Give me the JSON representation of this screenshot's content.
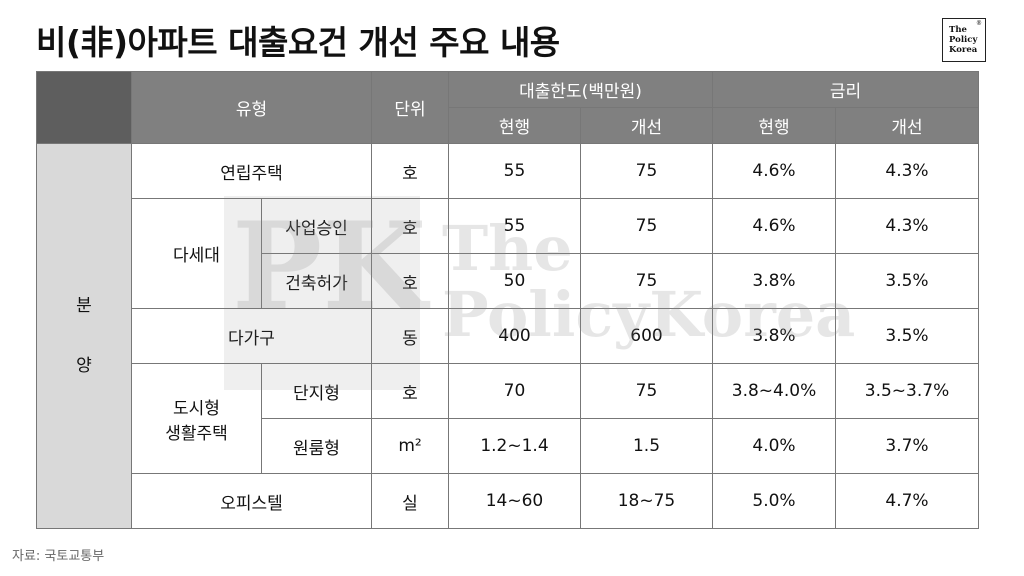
{
  "title": "비(非)아파트 대출요건 개선 주요 내용",
  "logo": {
    "line1": "The",
    "line2": "Policy",
    "line3": "Korea",
    "mark": "®"
  },
  "watermark": {
    "letters": "PK",
    "line1": "The",
    "line2": "PolicyKorea"
  },
  "header": {
    "type": "유형",
    "unit": "단위",
    "limit": "대출한도(백만원)",
    "rate": "금리",
    "current": "현행",
    "improved": "개선"
  },
  "side_label": {
    "char1": "분",
    "char2": "양"
  },
  "rows": {
    "yeonrip": {
      "type": "연립주택",
      "unit": "호",
      "limit_cur": "55",
      "limit_new": "75",
      "rate_cur": "4.6%",
      "rate_new": "4.3%"
    },
    "dasedae": {
      "type": "다세대"
    },
    "dasedae_a": {
      "sub": "사업승인",
      "unit": "호",
      "limit_cur": "55",
      "limit_new": "75",
      "rate_cur": "4.6%",
      "rate_new": "4.3%"
    },
    "dasedae_b": {
      "sub": "건축허가",
      "unit": "호",
      "limit_cur": "50",
      "limit_new": "75",
      "rate_cur": "3.8%",
      "rate_new": "3.5%"
    },
    "dagagu": {
      "type": "다가구",
      "unit": "동",
      "limit_cur": "400",
      "limit_new": "600",
      "rate_cur": "3.8%",
      "rate_new": "3.5%"
    },
    "dosi": {
      "type_line1": "도시형",
      "type_line2": "생활주택"
    },
    "dosi_a": {
      "sub": "단지형",
      "unit": "호",
      "limit_cur": "70",
      "limit_new": "75",
      "rate_cur": "3.8~4.0%",
      "rate_new": "3.5~3.7%"
    },
    "dosi_b": {
      "sub": "원룸형",
      "unit": "m²",
      "limit_cur": "1.2~1.4",
      "limit_new": "1.5",
      "rate_cur": "4.0%",
      "rate_new": "3.7%"
    },
    "office": {
      "type": "오피스텔",
      "unit": "실",
      "limit_cur": "14~60",
      "limit_new": "18~75",
      "rate_cur": "5.0%",
      "rate_new": "4.7%"
    }
  },
  "footer": "자료:  국토교통부"
}
